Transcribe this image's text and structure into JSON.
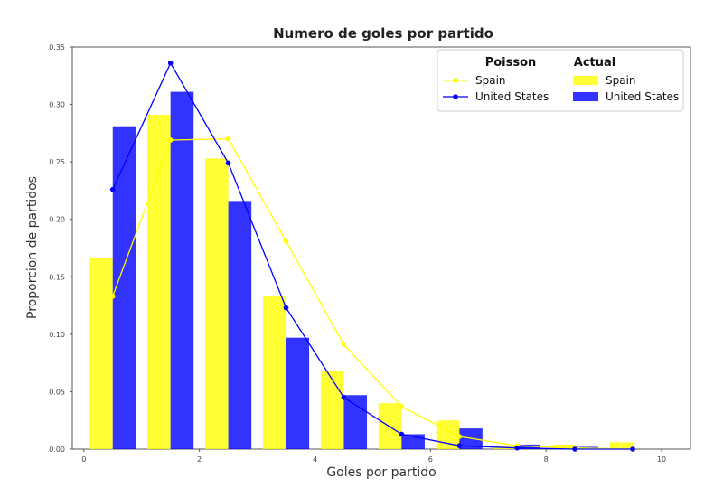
{
  "chart_data": {
    "type": "bar",
    "title": "Numero de goles por partido",
    "xlabel": "Goles por partido",
    "ylabel": "Proporcion de partidos",
    "xlim": [
      -0.2,
      10.5
    ],
    "ylim": [
      0,
      0.35
    ],
    "xticks": [
      0,
      2,
      4,
      6,
      8,
      10
    ],
    "yticks": [
      0.0,
      0.05,
      0.1,
      0.15,
      0.2,
      0.25,
      0.3,
      0.35
    ],
    "ytick_labels": [
      "0.00",
      "0.05",
      "0.10",
      "0.15",
      "0.20",
      "0.25",
      "0.30",
      "0.35"
    ],
    "grid": false,
    "bar_width": 0.4,
    "bar_series": [
      {
        "name": "Spain",
        "color": "#ffff00",
        "offset": -0.2,
        "x": [
          0.5,
          1.5,
          2.5,
          3.5,
          4.5,
          5.5,
          6.5,
          7.5,
          8.5,
          9.5
        ],
        "values": [
          0.166,
          0.291,
          0.253,
          0.133,
          0.068,
          0.04,
          0.025,
          0.003,
          0.004,
          0.006
        ]
      },
      {
        "name": "United States",
        "color": "#0000ff",
        "offset": 0.2,
        "x": [
          0.5,
          1.5,
          2.5,
          3.5,
          4.5,
          5.5,
          6.5,
          7.5,
          8.5,
          9.5
        ],
        "values": [
          0.281,
          0.311,
          0.216,
          0.097,
          0.047,
          0.013,
          0.018,
          0.004,
          0.002,
          0.0
        ]
      }
    ],
    "line_series": [
      {
        "name": "Spain",
        "color": "#ffff00",
        "x": [
          0.5,
          1.5,
          2.5,
          3.5,
          4.5,
          5.5,
          6.5,
          7.5,
          8.5,
          9.5
        ],
        "values": [
          0.133,
          0.269,
          0.27,
          0.181,
          0.091,
          0.037,
          0.011,
          0.003,
          0.001,
          0.0
        ]
      },
      {
        "name": "United States",
        "color": "#0000ff",
        "x": [
          0.5,
          1.5,
          2.5,
          3.5,
          4.5,
          5.5,
          6.5,
          7.5,
          8.5,
          9.5
        ],
        "values": [
          0.226,
          0.336,
          0.249,
          0.123,
          0.045,
          0.013,
          0.003,
          0.001,
          0.0,
          0.0
        ]
      }
    ],
    "legend": {
      "placement": "top-right",
      "poisson_title": "Poisson",
      "actual_title": "Actual",
      "poisson_items": [
        "Spain",
        "United States"
      ],
      "actual_items": [
        "Spain",
        "United States"
      ]
    }
  }
}
